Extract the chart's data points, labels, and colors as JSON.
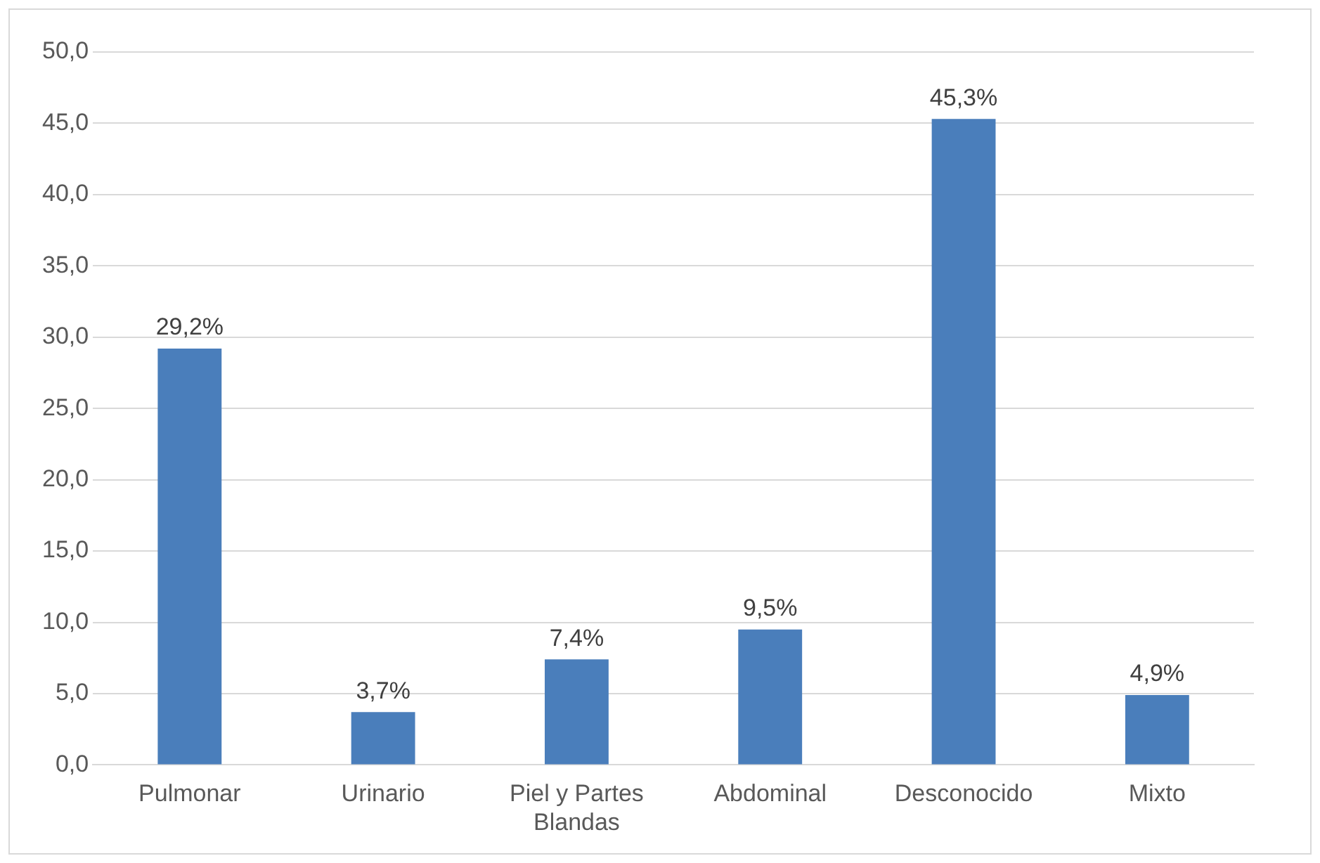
{
  "chart_data": {
    "type": "bar",
    "categories": [
      "Pulmonar",
      "Urinario",
      "Piel y Partes Blandas",
      "Abdominal",
      "Desconocido",
      "Mixto"
    ],
    "values": [
      29.2,
      3.7,
      7.4,
      9.5,
      45.3,
      4.9
    ],
    "value_labels": [
      "29,2%",
      "3,7%",
      "7,4%",
      "9,5%",
      "45,3%",
      "4,9%"
    ],
    "color": "#4a7ebb",
    "ylim": [
      0,
      50
    ],
    "yticks": [
      {
        "value": 0,
        "label": "0,0"
      },
      {
        "value": 5,
        "label": "5,0"
      },
      {
        "value": 10,
        "label": "10,0"
      },
      {
        "value": 15,
        "label": "15,0"
      },
      {
        "value": 20,
        "label": "20,0"
      },
      {
        "value": 25,
        "label": "25,0"
      },
      {
        "value": 30,
        "label": "30,0"
      },
      {
        "value": 35,
        "label": "35,0"
      },
      {
        "value": 40,
        "label": "40,0"
      },
      {
        "value": 45,
        "label": "45,0"
      },
      {
        "value": 50,
        "label": "50,0"
      }
    ],
    "grid": "y",
    "legend": false
  }
}
